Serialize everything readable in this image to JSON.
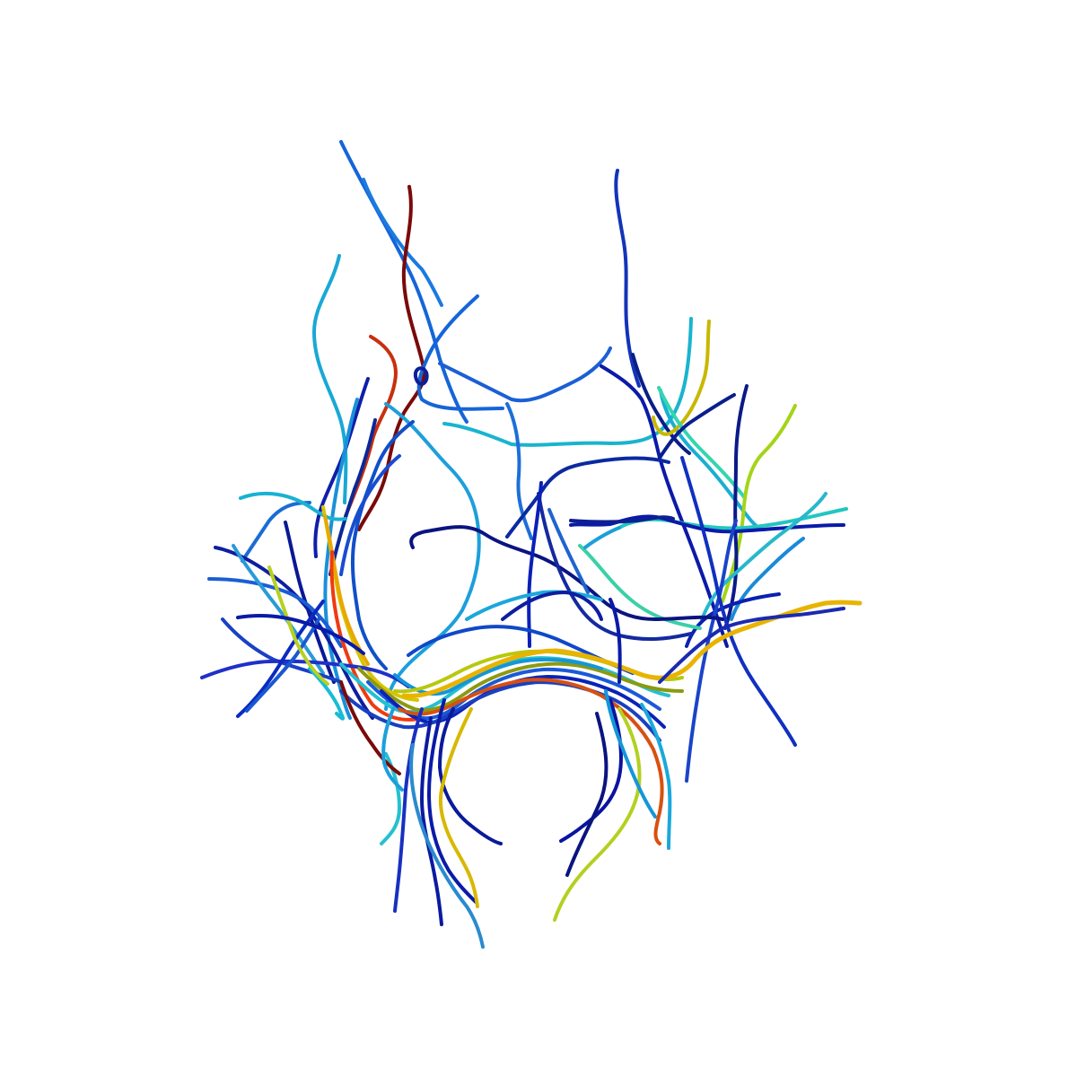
{
  "scene": {
    "subject": "",
    "fibers": [
      {
        "id": "f01",
        "color": "#1565d8"
      },
      {
        "id": "f02",
        "color": "#1a7ae0"
      },
      {
        "id": "f03",
        "color": "#7a0a0a"
      },
      {
        "id": "f04",
        "color": "#19a8d6"
      },
      {
        "id": "f05",
        "color": "#c8300e"
      },
      {
        "id": "f06",
        "color": "#1565d8"
      },
      {
        "id": "f07",
        "color": "#0a1f9a"
      },
      {
        "id": "f08",
        "color": "#1234b8"
      },
      {
        "id": "f09",
        "color": "#19b4cf"
      },
      {
        "id": "f10",
        "color": "#1a5fd6"
      },
      {
        "id": "f11",
        "color": "#1d6fd8"
      },
      {
        "id": "f12",
        "color": "#1d9fdb"
      },
      {
        "id": "f13",
        "color": "#0c1aa8"
      },
      {
        "id": "f14",
        "color": "#0b1e88"
      },
      {
        "id": "f15",
        "color": "#1aaed2"
      },
      {
        "id": "f16",
        "color": "#c8b800"
      },
      {
        "id": "f17",
        "color": "#33d6b0"
      },
      {
        "id": "f18",
        "color": "#a4d418"
      },
      {
        "id": "f19",
        "color": "#0a1a88"
      },
      {
        "id": "f20",
        "color": "#0a1f8c"
      },
      {
        "id": "f21",
        "color": "#0a2aa0"
      },
      {
        "id": "f22",
        "color": "#22c6c0"
      },
      {
        "id": "f23",
        "color": "#0a1aa8"
      },
      {
        "id": "f24",
        "color": "#28b8cc"
      },
      {
        "id": "f25",
        "color": "#0e2090"
      },
      {
        "id": "f26",
        "color": "#1a8ad8"
      },
      {
        "id": "f27",
        "color": "#0a20b0"
      },
      {
        "id": "f28",
        "color": "#1a44c8"
      },
      {
        "id": "f29",
        "color": "#1030c0"
      },
      {
        "id": "f30",
        "color": "#3ad0a8"
      },
      {
        "id": "f31",
        "color": "#0a1480"
      },
      {
        "id": "f32",
        "color": "#142a9e"
      },
      {
        "id": "f33",
        "color": "#0a20b8"
      },
      {
        "id": "f34",
        "color": "#1aa0d8"
      },
      {
        "id": "f35",
        "color": "#1f64d0"
      },
      {
        "id": "f36",
        "color": "#0f1fa8"
      },
      {
        "id": "f37",
        "color": "#1a90da"
      },
      {
        "id": "f38",
        "color": "#1050c8"
      },
      {
        "id": "f39",
        "color": "#0a2898"
      },
      {
        "id": "f40",
        "color": "#1a4cd0"
      },
      {
        "id": "f41",
        "color": "#1a6cd6"
      },
      {
        "id": "f42",
        "color": "#0a1896"
      },
      {
        "id": "f43",
        "color": "#0d1ea0"
      },
      {
        "id": "f44",
        "color": "#1a5ed4"
      },
      {
        "id": "f45",
        "color": "#2a9ad8"
      },
      {
        "id": "f46",
        "color": "#1a40c4"
      },
      {
        "id": "f47",
        "color": "#19b2d2"
      },
      {
        "id": "f48",
        "color": "#d8c400"
      },
      {
        "id": "f49",
        "color": "#e8a800"
      },
      {
        "id": "f50",
        "color": "#f03a10"
      },
      {
        "id": "f51",
        "color": "#18bcd6"
      },
      {
        "id": "f52",
        "color": "#2030c8"
      },
      {
        "id": "f53",
        "color": "#0a2ac0"
      },
      {
        "id": "f54",
        "color": "#1a58d2"
      },
      {
        "id": "f55",
        "color": "#b8d020"
      },
      {
        "id": "f56",
        "color": "#0a1aa8"
      },
      {
        "id": "f57",
        "color": "#24c0d0"
      },
      {
        "id": "f58",
        "color": "#8c9a10"
      },
      {
        "id": "f59",
        "color": "#1a5ad8"
      },
      {
        "id": "f60",
        "color": "#0a22b8"
      },
      {
        "id": "f61",
        "color": "#1a40c0"
      },
      {
        "id": "f62",
        "color": "#1496d8"
      },
      {
        "id": "f63",
        "color": "#b8c80e"
      },
      {
        "id": "f64",
        "color": "#d85010"
      },
      {
        "id": "f65",
        "color": "#1048c8"
      },
      {
        "id": "f66",
        "color": "#1aa8dc"
      },
      {
        "id": "f67",
        "color": "#e8b400"
      },
      {
        "id": "f68",
        "color": "#1a2ab0"
      },
      {
        "id": "f69",
        "color": "#0a1aa0"
      },
      {
        "id": "f70",
        "color": "#1830c0"
      },
      {
        "id": "f71",
        "color": "#0a1a9a"
      },
      {
        "id": "f72",
        "color": "#0a1aa8"
      },
      {
        "id": "f73",
        "color": "#d8b800"
      },
      {
        "id": "f74",
        "color": "#2a8ad0"
      },
      {
        "id": "f75",
        "color": "#0a14a0"
      },
      {
        "id": "f76",
        "color": "#b4d020"
      }
    ]
  }
}
